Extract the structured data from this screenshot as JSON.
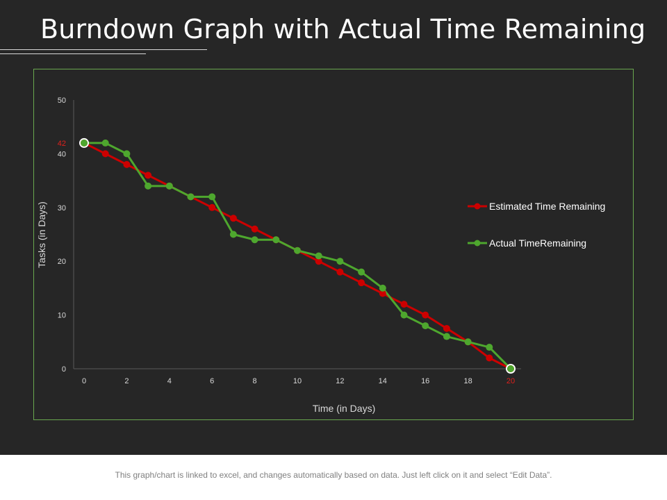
{
  "title": "Burndown Graph with Actual Time Remaining",
  "footer": "This graph/chart is linked to excel, and changes automatically based on data. Just left click on it and select “Edit Data”.",
  "colors": {
    "background": "#262626",
    "frame": "#6aa84f",
    "estimated": "#cc0000",
    "actual": "#4ea72e",
    "highlight": "#e0201c",
    "text": "#ffffff",
    "tick": "#d9d9d9"
  },
  "chart_data": {
    "type": "line",
    "title": "",
    "xlabel": "Time (in Days)",
    "ylabel": "Tasks (in Days)",
    "xlim": [
      0,
      20
    ],
    "ylim": [
      0,
      50
    ],
    "x_ticks": [
      0,
      2,
      4,
      6,
      8,
      10,
      12,
      14,
      16,
      18,
      20
    ],
    "y_ticks": [
      0,
      10,
      20,
      30,
      40,
      50
    ],
    "highlight_x_tick": "20",
    "highlight_y_tick": "42",
    "legend_position": "right",
    "series": [
      {
        "name": "Estimated Time Remaining",
        "x": [
          0,
          1,
          2,
          3,
          4,
          5,
          6,
          7,
          8,
          9,
          10,
          11,
          12,
          13,
          14,
          15,
          16,
          17,
          18,
          19,
          20
        ],
        "values": [
          42,
          40,
          38,
          36,
          34,
          32,
          30,
          28,
          26,
          24,
          22,
          20,
          18,
          16,
          14,
          12,
          10,
          7.5,
          5,
          2,
          0
        ]
      },
      {
        "name": "Actual TimeRemaining",
        "x": [
          0,
          1,
          2,
          3,
          4,
          5,
          6,
          7,
          8,
          9,
          10,
          11,
          12,
          13,
          14,
          15,
          16,
          17,
          18,
          19,
          20
        ],
        "values": [
          42,
          42,
          40,
          34,
          34,
          32,
          32,
          25,
          24,
          24,
          22,
          21,
          20,
          18,
          15,
          10,
          8,
          6,
          5,
          4,
          0
        ]
      }
    ]
  }
}
